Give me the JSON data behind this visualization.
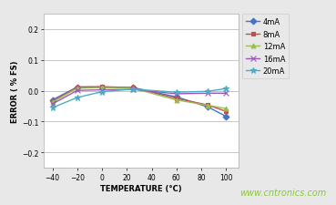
{
  "title": "",
  "xlabel": "TEMPERATURE (°C)",
  "ylabel": "ERROR ( % FS)",
  "xlim": [
    -47,
    110
  ],
  "ylim": [
    -0.25,
    0.25
  ],
  "xticks": [
    -40,
    -20,
    0,
    20,
    40,
    60,
    80,
    100
  ],
  "yticks": [
    -0.2,
    -0.1,
    0.0,
    0.1,
    0.2
  ],
  "watermark": "www.cntronics.com",
  "background_color": "#e8e8e8",
  "plot_background": "#ffffff",
  "series": [
    {
      "label": "4mA",
      "color": "#4472c4",
      "marker": "D",
      "markersize": 3.5,
      "x": [
        -40,
        -20,
        0,
        25,
        60,
        85,
        100
      ],
      "y": [
        -0.03,
        0.012,
        0.012,
        0.01,
        -0.02,
        -0.052,
        -0.083
      ]
    },
    {
      "label": "8mA",
      "color": "#c0504d",
      "marker": "s",
      "markersize": 3.5,
      "x": [
        -40,
        -20,
        0,
        25,
        60,
        85,
        100
      ],
      "y": [
        -0.035,
        0.012,
        0.013,
        0.01,
        -0.025,
        -0.046,
        -0.067
      ]
    },
    {
      "label": "12mA",
      "color": "#9bbb59",
      "marker": "^",
      "markersize": 3.5,
      "x": [
        -40,
        -20,
        0,
        25,
        60,
        85,
        100
      ],
      "y": [
        -0.037,
        0.008,
        0.01,
        0.008,
        -0.03,
        -0.047,
        -0.058
      ]
    },
    {
      "label": "16mA",
      "color": "#9b59b6",
      "marker": "x",
      "markersize": 4.5,
      "x": [
        -40,
        -20,
        0,
        25,
        60,
        85,
        100
      ],
      "y": [
        -0.043,
        0.001,
        0.003,
        0.004,
        -0.01,
        -0.008,
        -0.008
      ]
    },
    {
      "label": "20mA",
      "color": "#4bacc6",
      "marker": "*",
      "markersize": 5,
      "x": [
        -40,
        -20,
        0,
        25,
        60,
        85,
        100
      ],
      "y": [
        -0.055,
        -0.022,
        -0.003,
        0.005,
        -0.005,
        -0.002,
        0.007
      ]
    }
  ]
}
